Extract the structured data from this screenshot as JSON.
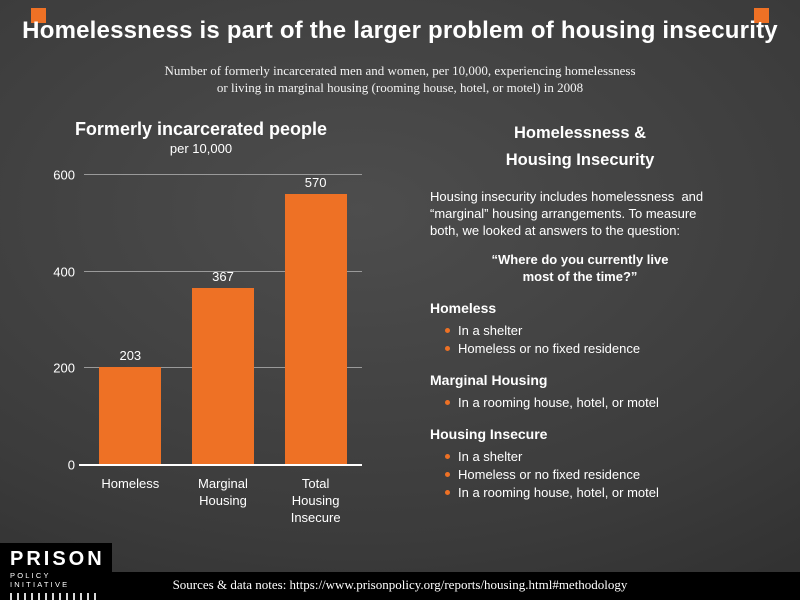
{
  "page": {
    "title": "Homelessness is part of the larger problem of housing insecurity",
    "subtitle_line1": "Number of formerly incarcerated men and women, per 10,000, experiencing homelessness",
    "subtitle_line2": "or living in marginal housing (rooming house, hotel, or motel) in 2008"
  },
  "chart_data": {
    "type": "bar",
    "title": "Formerly incarcerated people",
    "subtitle": "per 10,000",
    "categories": [
      "Homeless",
      "Marginal Housing",
      "Total Housing Insecure"
    ],
    "values": [
      203,
      367,
      570
    ],
    "bar_color": "#ee7125",
    "xlabel": "",
    "ylabel": "",
    "ylim": [
      0,
      600
    ],
    "yticks": [
      0,
      200,
      400,
      600
    ],
    "grid": true,
    "legend": "none"
  },
  "panel": {
    "heading_line1": "Homelessness &",
    "heading_line2": "Housing Insecurity",
    "intro_lines": [
      "Housing insecurity includes homelessness  and",
      "“marginal” housing arrangements. To measure",
      "both, we looked at answers to the question:"
    ],
    "question_line1": "“Where do you currently live",
    "question_line2": "most of the time?”",
    "sections": [
      {
        "title": "Homeless",
        "bullets": [
          "In a shelter",
          "Homeless or no fixed residence"
        ]
      },
      {
        "title": "Marginal Housing",
        "bullets": [
          "In a rooming house, hotel, or motel"
        ]
      },
      {
        "title": "Housing Insecure",
        "bullets": [
          "In a shelter",
          "Homeless or no fixed residence",
          "In a rooming house, hotel, or motel"
        ]
      }
    ]
  },
  "footer": {
    "logo_line1": "PRISON",
    "logo_line2": "POLICY INITIATIVE",
    "source": "Sources & data notes: https://www.prisonpolicy.org/reports/housing.html#methodology"
  },
  "colors": {
    "accent_orange": "#ee7125",
    "background": "#3b3b3b",
    "footer_black": "#000000",
    "gridline_gray": "#9a9a9a"
  }
}
